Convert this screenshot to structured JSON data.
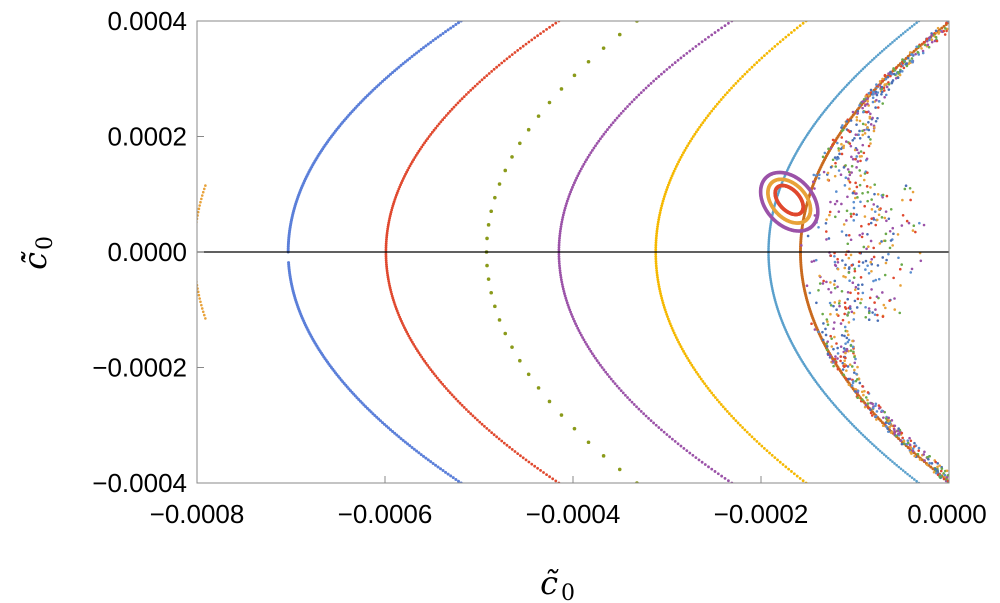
{
  "chart_data": {
    "type": "scatter",
    "title": "",
    "xlabel": "c̃",
    "xlabel_sub": "0",
    "ylabel": "c̃̇",
    "ylabel_sub": "0",
    "xlim": [
      -0.0008,
      0.0
    ],
    "ylim": [
      -0.0004,
      0.0004
    ],
    "x_ticks": [
      {
        "value": -0.0008,
        "label": "−0.0008"
      },
      {
        "value": -0.0006,
        "label": "−0.0006"
      },
      {
        "value": -0.0004,
        "label": "−0.0004"
      },
      {
        "value": -0.0002,
        "label": "−0.0002"
      },
      {
        "value": 0.0,
        "label": "0.0000"
      }
    ],
    "y_ticks": [
      {
        "value": 0.0004,
        "label": "0.0004"
      },
      {
        "value": 0.0002,
        "label": "0.0002"
      },
      {
        "value": 0.0,
        "label": "0.0000"
      },
      {
        "value": -0.0002,
        "label": "−0.0002"
      },
      {
        "value": -0.0004,
        "label": "−0.0004"
      }
    ],
    "zero_line_y": 0.0,
    "grid": false,
    "series": [
      {
        "name": "orbit-1",
        "color": "#e8a23a",
        "vertex_x": -0.000803,
        "k": 900,
        "density": 40,
        "dot": 1.3,
        "ylim_pts": 0.000115
      },
      {
        "name": "orbit-2",
        "color": "#5b7fd9",
        "vertex_x": -0.000703,
        "k": 1150,
        "density": 260,
        "dot": 1.5,
        "gap": 1.8e-05
      },
      {
        "name": "orbit-3",
        "color": "#e0482e",
        "vertex_x": -0.000599,
        "k": 1150,
        "density": 220,
        "dot": 1.4
      },
      {
        "name": "orbit-4",
        "color": "#8a9a1a",
        "vertex_x": -0.000492,
        "k": 1000,
        "density": 34,
        "dot": 1.8
      },
      {
        "name": "orbit-5",
        "color": "#9b52a8",
        "vertex_x": -0.000415,
        "k": 1150,
        "density": 200,
        "dot": 1.4
      },
      {
        "name": "orbit-6",
        "color": "#f5b800",
        "vertex_x": -0.000312,
        "k": 1000,
        "density": 200,
        "dot": 1.4
      },
      {
        "name": "orbit-7",
        "color": "#5aa0cc",
        "vertex_x": -0.000192,
        "k": 1000,
        "density": 260,
        "dot": 1.3
      },
      {
        "name": "orbit-8",
        "color": "#c96a1e",
        "vertex_x": -0.000158,
        "k": 1000,
        "density": 260,
        "dot": 1.5
      }
    ],
    "chaotic_points": {
      "colors": [
        "#4a6fb5",
        "#5b8fd0",
        "#6aaa4a",
        "#e0482e",
        "#e8a23a",
        "#9b52a8"
      ],
      "count": 900
    },
    "islands": [
      {
        "name": "island-outer",
        "color": "#9b52a8",
        "cx": -0.00017,
        "cy": 8.7e-05,
        "rx": 2.5e-05,
        "ry": 5.8e-05
      },
      {
        "name": "island-mid",
        "color": "#e8a23a",
        "cx": -0.00017,
        "cy": 8.8e-05,
        "rx": 1.8e-05,
        "ry": 4.4e-05
      },
      {
        "name": "island-inner",
        "color": "#e0482e",
        "cx": -0.00017,
        "cy": 9e-05,
        "rx": 1.1e-05,
        "ry": 3e-05
      }
    ]
  }
}
